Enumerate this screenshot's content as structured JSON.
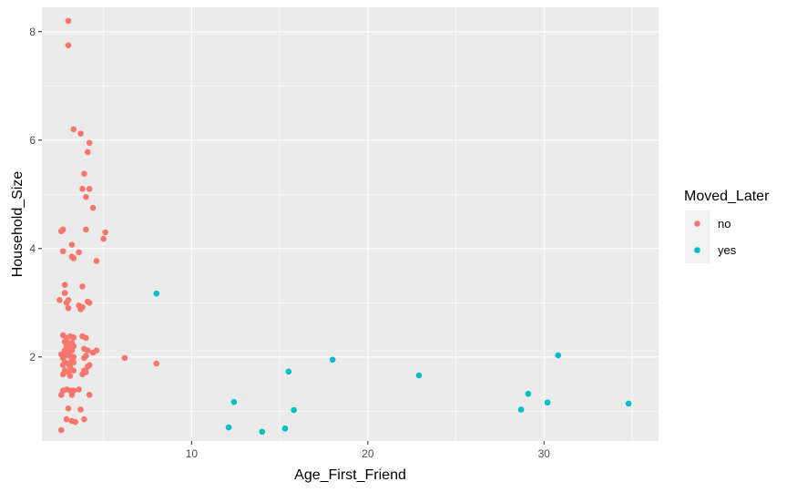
{
  "chart_data": {
    "type": "scatter",
    "xlabel": "Age_First_Friend",
    "ylabel": "Household_Size",
    "xlim": [
      1.5,
      36.5
    ],
    "ylim": [
      0.45,
      8.45
    ],
    "x_ticks": [
      10,
      20,
      30
    ],
    "y_ticks": [
      2,
      4,
      6,
      8
    ],
    "grid": true,
    "legend": {
      "title": "Moved_Later",
      "placement": "right"
    },
    "series": [
      {
        "name": "no",
        "color": "#F8766D",
        "points": [
          [
            3.0,
            8.2
          ],
          [
            3.0,
            7.75
          ],
          [
            3.3,
            6.2
          ],
          [
            3.7,
            6.12
          ],
          [
            4.2,
            5.95
          ],
          [
            4.1,
            5.78
          ],
          [
            3.9,
            5.38
          ],
          [
            3.8,
            5.1
          ],
          [
            4.2,
            5.1
          ],
          [
            4.0,
            4.95
          ],
          [
            4.4,
            4.75
          ],
          [
            2.6,
            4.32
          ],
          [
            2.7,
            4.35
          ],
          [
            4.0,
            4.35
          ],
          [
            5.1,
            4.3
          ],
          [
            5.0,
            4.18
          ],
          [
            3.2,
            4.07
          ],
          [
            2.7,
            3.95
          ],
          [
            3.6,
            3.93
          ],
          [
            3.2,
            3.85
          ],
          [
            3.3,
            3.82
          ],
          [
            4.6,
            3.77
          ],
          [
            2.8,
            3.33
          ],
          [
            3.8,
            3.3
          ],
          [
            2.8,
            3.18
          ],
          [
            2.5,
            3.05
          ],
          [
            2.9,
            3.0
          ],
          [
            3.0,
            3.05
          ],
          [
            3.6,
            2.95
          ],
          [
            3.8,
            2.92
          ],
          [
            4.1,
            3.02
          ],
          [
            4.2,
            3.0
          ],
          [
            3.0,
            2.9
          ],
          [
            3.7,
            2.88
          ],
          [
            2.7,
            2.4
          ],
          [
            2.9,
            2.35
          ],
          [
            3.1,
            2.38
          ],
          [
            3.3,
            2.36
          ],
          [
            3.8,
            2.38
          ],
          [
            4.0,
            2.35
          ],
          [
            2.8,
            2.28
          ],
          [
            3.0,
            2.25
          ],
          [
            3.2,
            2.26
          ],
          [
            2.9,
            2.2
          ],
          [
            3.1,
            2.18
          ],
          [
            3.3,
            2.2
          ],
          [
            2.8,
            2.12
          ],
          [
            3.0,
            2.1
          ],
          [
            3.2,
            2.12
          ],
          [
            3.9,
            2.15
          ],
          [
            4.1,
            2.12
          ],
          [
            4.6,
            2.12
          ],
          [
            4.4,
            2.08
          ],
          [
            2.6,
            2.05
          ],
          [
            2.9,
            2.03
          ],
          [
            3.1,
            2.02
          ],
          [
            3.3,
            2.0
          ],
          [
            2.7,
            1.98
          ],
          [
            3.2,
            1.95
          ],
          [
            3.9,
            1.98
          ],
          [
            4.0,
            2.02
          ],
          [
            2.8,
            1.9
          ],
          [
            3.0,
            1.88
          ],
          [
            3.3,
            1.9
          ],
          [
            2.7,
            1.85
          ],
          [
            3.1,
            1.82
          ],
          [
            4.2,
            1.85
          ],
          [
            4.1,
            1.82
          ],
          [
            2.8,
            1.75
          ],
          [
            3.0,
            1.72
          ],
          [
            3.3,
            1.75
          ],
          [
            3.9,
            1.75
          ],
          [
            4.0,
            1.72
          ],
          [
            2.7,
            1.68
          ],
          [
            3.1,
            1.65
          ],
          [
            3.8,
            1.68
          ],
          [
            2.9,
            1.4
          ],
          [
            3.1,
            1.38
          ],
          [
            3.3,
            1.38
          ],
          [
            3.6,
            1.4
          ],
          [
            2.7,
            1.38
          ],
          [
            2.6,
            1.3
          ],
          [
            3.2,
            1.3
          ],
          [
            4.2,
            1.3
          ],
          [
            3.0,
            1.05
          ],
          [
            3.7,
            1.03
          ],
          [
            2.9,
            0.85
          ],
          [
            3.2,
            0.82
          ],
          [
            3.4,
            0.8
          ],
          [
            3.9,
            0.85
          ],
          [
            2.6,
            0.65
          ],
          [
            6.2,
            1.98
          ],
          [
            8.0,
            1.88
          ]
        ]
      },
      {
        "name": "yes",
        "color": "#00BFC4",
        "points": [
          [
            8.0,
            3.17
          ],
          [
            12.4,
            1.17
          ],
          [
            12.1,
            0.7
          ],
          [
            14.0,
            0.62
          ],
          [
            15.3,
            0.68
          ],
          [
            15.5,
            1.73
          ],
          [
            15.8,
            1.02
          ],
          [
            18.0,
            1.95
          ],
          [
            22.9,
            1.66
          ],
          [
            28.7,
            1.03
          ],
          [
            29.1,
            1.32
          ],
          [
            30.2,
            1.16
          ],
          [
            30.8,
            2.03
          ],
          [
            34.8,
            1.14
          ]
        ]
      }
    ]
  }
}
